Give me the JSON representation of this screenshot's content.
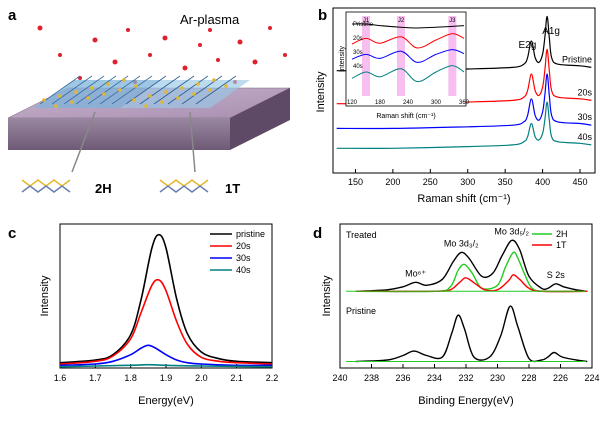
{
  "figure": {
    "panels": {
      "a": {
        "label": "a",
        "plasma_label": "Ar-plasma",
        "phase_left": "2H",
        "phase_right": "1T"
      },
      "b": {
        "label": "b"
      },
      "c": {
        "label": "c"
      },
      "d": {
        "label": "d"
      }
    }
  },
  "chart_data": [
    {
      "panel": "b",
      "type": "line",
      "xlabel": "Raman shift (cm⁻¹)",
      "ylabel": "Intensity",
      "xlim": [
        120,
        470
      ],
      "xticks": [
        150,
        200,
        250,
        300,
        350,
        400,
        450
      ],
      "peak_labels": [
        "E2g",
        "A1g"
      ],
      "peaks_x": [
        385,
        406
      ],
      "series": [
        {
          "name": "Pristine",
          "color": "#000000",
          "x": [
            125,
            200,
            300,
            360,
            375,
            380,
            385,
            390,
            395,
            400,
            403,
            406,
            409,
            412,
            420,
            450,
            465
          ],
          "y": [
            0.62,
            0.62,
            0.63,
            0.64,
            0.66,
            0.7,
            0.8,
            0.7,
            0.67,
            0.72,
            0.82,
            0.95,
            0.82,
            0.7,
            0.66,
            0.65,
            0.64
          ]
        },
        {
          "name": "20s",
          "color": "#ff0000",
          "x": [
            125,
            200,
            300,
            360,
            375,
            380,
            385,
            390,
            395,
            400,
            403,
            406,
            409,
            412,
            420,
            450,
            465
          ],
          "y": [
            0.42,
            0.42,
            0.43,
            0.44,
            0.46,
            0.5,
            0.6,
            0.5,
            0.47,
            0.52,
            0.62,
            0.75,
            0.62,
            0.5,
            0.46,
            0.45,
            0.44
          ]
        },
        {
          "name": "30s",
          "color": "#0000ff",
          "x": [
            125,
            200,
            300,
            360,
            375,
            380,
            385,
            390,
            395,
            400,
            403,
            406,
            409,
            412,
            420,
            450,
            465
          ],
          "y": [
            0.27,
            0.27,
            0.28,
            0.29,
            0.31,
            0.35,
            0.45,
            0.35,
            0.32,
            0.37,
            0.47,
            0.6,
            0.47,
            0.35,
            0.31,
            0.3,
            0.29
          ]
        },
        {
          "name": "40s",
          "color": "#008080",
          "x": [
            125,
            200,
            300,
            360,
            375,
            380,
            385,
            390,
            395,
            400,
            403,
            406,
            409,
            412,
            420,
            450,
            465
          ],
          "y": [
            0.15,
            0.15,
            0.16,
            0.17,
            0.19,
            0.22,
            0.3,
            0.22,
            0.2,
            0.24,
            0.32,
            0.43,
            0.32,
            0.22,
            0.19,
            0.18,
            0.17
          ]
        }
      ],
      "inset": {
        "xlabel": "Raman shift (cm⁻¹)",
        "ylabel": "Intensity",
        "xlim": [
          120,
          360
        ],
        "xticks": [
          120,
          180,
          240,
          300,
          360
        ],
        "highlight_labels": [
          "J1",
          "J2",
          "J3"
        ],
        "highlight_x": [
          150,
          225,
          335
        ],
        "series": [
          {
            "name": "Pristine",
            "color": "#000000",
            "x": [
              120,
              150,
              180,
              225,
              260,
              300,
              335,
              360
            ],
            "y": [
              0.9,
              0.9,
              0.88,
              0.86,
              0.85,
              0.86,
              0.87,
              0.88
            ]
          },
          {
            "name": "20s",
            "color": "#ff0000",
            "x": [
              120,
              150,
              180,
              225,
              260,
              300,
              335,
              360
            ],
            "y": [
              0.65,
              0.72,
              0.66,
              0.74,
              0.6,
              0.7,
              0.78,
              0.72
            ]
          },
          {
            "name": "30s",
            "color": "#0000ff",
            "x": [
              120,
              150,
              180,
              225,
              260,
              300,
              335,
              360
            ],
            "y": [
              0.46,
              0.52,
              0.47,
              0.56,
              0.42,
              0.52,
              0.58,
              0.53
            ]
          },
          {
            "name": "40s",
            "color": "#008080",
            "x": [
              120,
              150,
              180,
              225,
              260,
              300,
              335,
              360
            ],
            "y": [
              0.22,
              0.3,
              0.24,
              0.34,
              0.18,
              0.3,
              0.38,
              0.3
            ]
          }
        ]
      }
    },
    {
      "panel": "c",
      "type": "line",
      "xlabel": "Energy(eV)",
      "ylabel": "Intensity",
      "xlim": [
        1.6,
        2.2
      ],
      "xticks": [
        1.6,
        1.7,
        1.8,
        1.9,
        2.0,
        2.1,
        2.2
      ],
      "series": [
        {
          "name": "pristine",
          "color": "#000000",
          "x": [
            1.6,
            1.7,
            1.75,
            1.8,
            1.83,
            1.86,
            1.88,
            1.9,
            1.93,
            1.96,
            2.0,
            2.05,
            2.1,
            2.2
          ],
          "y": [
            0.04,
            0.06,
            0.1,
            0.25,
            0.52,
            0.9,
            1.0,
            0.9,
            0.52,
            0.26,
            0.12,
            0.07,
            0.05,
            0.04
          ]
        },
        {
          "name": "20s",
          "color": "#ff0000",
          "x": [
            1.6,
            1.7,
            1.75,
            1.8,
            1.83,
            1.86,
            1.88,
            1.9,
            1.93,
            1.96,
            2.0,
            2.05,
            2.1,
            2.2
          ],
          "y": [
            0.03,
            0.05,
            0.09,
            0.22,
            0.42,
            0.62,
            0.66,
            0.58,
            0.35,
            0.18,
            0.08,
            0.05,
            0.04,
            0.03
          ]
        },
        {
          "name": "30s",
          "color": "#0000ff",
          "x": [
            1.6,
            1.7,
            1.75,
            1.8,
            1.83,
            1.85,
            1.87,
            1.9,
            1.93,
            1.96,
            2.0,
            2.1,
            2.2
          ],
          "y": [
            0.02,
            0.03,
            0.05,
            0.1,
            0.15,
            0.17,
            0.15,
            0.1,
            0.06,
            0.04,
            0.03,
            0.02,
            0.02
          ]
        },
        {
          "name": "40s",
          "color": "#008080",
          "x": [
            1.6,
            1.8,
            1.85,
            1.9,
            2.0,
            2.2
          ],
          "y": [
            0.01,
            0.02,
            0.025,
            0.02,
            0.015,
            0.01
          ]
        }
      ]
    },
    {
      "panel": "d",
      "type": "line",
      "xlabel": "Binding Energy(eV)",
      "ylabel": "Intensity",
      "xlim": [
        240,
        224
      ],
      "xticks": [
        240,
        238,
        236,
        234,
        232,
        230,
        228,
        226,
        224
      ],
      "group_labels": [
        "Treated",
        "Pristine"
      ],
      "peak_labels": [
        "Mo⁶⁺",
        "Mo 3d₃/₂",
        "Mo 3d₅/₂",
        "S 2s"
      ],
      "series": [
        {
          "name": "Treated",
          "color": "#000000",
          "x": [
            239,
            237,
            236,
            235.2,
            234.5,
            233.5,
            232.8,
            232.3,
            231.8,
            231,
            230.3,
            229.7,
            229.1,
            228.6,
            228,
            227.2,
            226.8,
            226.3,
            225.8,
            225,
            224.3
          ],
          "y": [
            0.5,
            0.51,
            0.53,
            0.56,
            0.54,
            0.58,
            0.7,
            0.76,
            0.72,
            0.6,
            0.62,
            0.74,
            0.84,
            0.78,
            0.6,
            0.52,
            0.52,
            0.55,
            0.53,
            0.51,
            0.5
          ]
        },
        {
          "name": "2H",
          "color": "#22cc22",
          "x": [
            239,
            234,
            233,
            232.5,
            232.1,
            231.6,
            231,
            230,
            229.5,
            229,
            228.7,
            228.3,
            227.8,
            227,
            224.3
          ],
          "y": [
            0.5,
            0.5,
            0.53,
            0.64,
            0.68,
            0.62,
            0.52,
            0.54,
            0.66,
            0.76,
            0.72,
            0.62,
            0.52,
            0.5,
            0.5
          ]
        },
        {
          "name": "1T",
          "color": "#ff0000",
          "x": [
            239,
            234,
            233,
            232.4,
            232,
            231.4,
            230.8,
            230,
            229.3,
            229,
            228.6,
            228,
            227.2,
            224.3
          ],
          "y": [
            0.5,
            0.5,
            0.51,
            0.56,
            0.59,
            0.55,
            0.51,
            0.51,
            0.57,
            0.61,
            0.58,
            0.52,
            0.5,
            0.5
          ]
        },
        {
          "name": "Pristine",
          "color": "#000000",
          "x": [
            239,
            237,
            236,
            235.3,
            234.5,
            233.5,
            232.9,
            232.5,
            232.1,
            231.5,
            230.5,
            229.8,
            229.2,
            228.7,
            228,
            227.2,
            226.8,
            226.4,
            225.9,
            225,
            224.3
          ],
          "y": [
            0.03,
            0.04,
            0.07,
            0.1,
            0.07,
            0.06,
            0.22,
            0.34,
            0.25,
            0.06,
            0.06,
            0.2,
            0.4,
            0.26,
            0.05,
            0.04,
            0.06,
            0.09,
            0.06,
            0.04,
            0.03
          ]
        }
      ],
      "legend": [
        "2H",
        "1T"
      ]
    }
  ]
}
